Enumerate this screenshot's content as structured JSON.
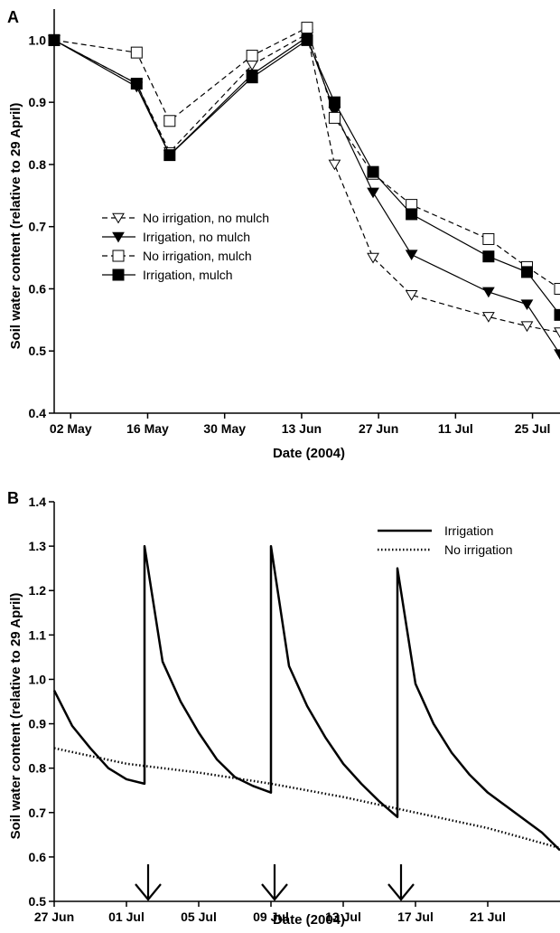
{
  "chart_data": [
    {
      "panel": "A",
      "type": "line",
      "title": "",
      "xlabel": "Date (2004)",
      "ylabel": "Soil water content (relative to 29 April)",
      "ylim": [
        0.4,
        1.05
      ],
      "yticks": [
        "0.4",
        "0.5",
        "0.6",
        "0.7",
        "0.8",
        "0.9",
        "1.0"
      ],
      "xticks": [
        "02 May",
        "16 May",
        "30 May",
        "13 Jun",
        "27 Jun",
        "11 Jul",
        "25 Jul"
      ],
      "xlim_dates": [
        "2004-04-29",
        "2004-07-30"
      ],
      "grid": false,
      "legend_position": "center-left",
      "series": [
        {
          "name": "No irrigation, no mulch",
          "marker": "triangle-down-open",
          "dash": true,
          "color": "#000000",
          "x": [
            "2004-04-29",
            "2004-05-14",
            "2004-05-20",
            "2004-06-04",
            "2004-06-14",
            "2004-06-19",
            "2004-06-26",
            "2004-07-03",
            "2004-07-17",
            "2004-07-24",
            "2004-07-30"
          ],
          "y": [
            1.0,
            0.93,
            0.82,
            0.96,
            1.01,
            0.8,
            0.65,
            0.59,
            0.555,
            0.54,
            0.53
          ]
        },
        {
          "name": "Irrigation, no mulch",
          "marker": "triangle-down-filled",
          "dash": false,
          "color": "#000000",
          "x": [
            "2004-04-29",
            "2004-05-14",
            "2004-05-20",
            "2004-06-04",
            "2004-06-14",
            "2004-06-19",
            "2004-06-26",
            "2004-07-03",
            "2004-07-17",
            "2004-07-24",
            "2004-07-30"
          ],
          "y": [
            1.0,
            0.925,
            0.815,
            0.945,
            1.005,
            0.885,
            0.755,
            0.655,
            0.595,
            0.575,
            0.495
          ]
        },
        {
          "name": "No irrigation, mulch",
          "marker": "square-open",
          "dash": true,
          "color": "#000000",
          "x": [
            "2004-04-29",
            "2004-05-14",
            "2004-05-20",
            "2004-06-04",
            "2004-06-14",
            "2004-06-19",
            "2004-06-26",
            "2004-07-03",
            "2004-07-17",
            "2004-07-24",
            "2004-07-30"
          ],
          "y": [
            1.0,
            0.98,
            0.87,
            0.975,
            1.02,
            0.875,
            0.785,
            0.735,
            0.68,
            0.635,
            0.6
          ]
        },
        {
          "name": "Irrigation, mulch",
          "marker": "square-filled",
          "dash": false,
          "color": "#000000",
          "x": [
            "2004-04-29",
            "2004-05-14",
            "2004-05-20",
            "2004-06-04",
            "2004-06-14",
            "2004-06-19",
            "2004-06-26",
            "2004-07-03",
            "2004-07-17",
            "2004-07-24",
            "2004-07-30"
          ],
          "y": [
            1.0,
            0.93,
            0.815,
            0.94,
            1.0,
            0.9,
            0.788,
            0.72,
            0.652,
            0.627,
            0.558
          ]
        }
      ]
    },
    {
      "panel": "B",
      "type": "line",
      "title": "",
      "xlabel": "Date (2004)",
      "ylabel": "Soil water content (relative to 29 April)",
      "ylim": [
        0.5,
        1.4
      ],
      "yticks": [
        "0.5",
        "0.6",
        "0.7",
        "0.8",
        "0.9",
        "1.0",
        "1.1",
        "1.2",
        "1.3",
        "1.4"
      ],
      "xticks": [
        "27 Jun",
        "01 Jul",
        "05 Jul",
        "09 Jul",
        "13 Jul",
        "17 Jul",
        "21 Jul"
      ],
      "xlim_dates": [
        "2004-06-27",
        "2004-07-25"
      ],
      "grid": false,
      "legend_position": "top-right",
      "irrigation_events": [
        "2004-07-02",
        "2004-07-09",
        "2004-07-16"
      ],
      "series": [
        {
          "name": "Irrigation",
          "style": "solid",
          "color": "#000000",
          "x": [
            "2004-06-27",
            "2004-06-28",
            "2004-06-29",
            "2004-06-30",
            "2004-07-01",
            "2004-07-02",
            "2004-07-02",
            "2004-07-03",
            "2004-07-04",
            "2004-07-05",
            "2004-07-06",
            "2004-07-07",
            "2004-07-08",
            "2004-07-09",
            "2004-07-09",
            "2004-07-10",
            "2004-07-11",
            "2004-07-12",
            "2004-07-13",
            "2004-07-14",
            "2004-07-15",
            "2004-07-16",
            "2004-07-16",
            "2004-07-17",
            "2004-07-18",
            "2004-07-19",
            "2004-07-20",
            "2004-07-21",
            "2004-07-22",
            "2004-07-23",
            "2004-07-24",
            "2004-07-25"
          ],
          "y": [
            0.975,
            0.895,
            0.845,
            0.8,
            0.775,
            0.765,
            1.3,
            1.04,
            0.95,
            0.88,
            0.82,
            0.78,
            0.76,
            0.745,
            1.3,
            1.03,
            0.94,
            0.87,
            0.81,
            0.765,
            0.725,
            0.69,
            1.25,
            0.99,
            0.9,
            0.835,
            0.785,
            0.745,
            0.715,
            0.685,
            0.655,
            0.615
          ]
        },
        {
          "name": "No irrigation",
          "style": "dotted",
          "color": "#000000",
          "x": [
            "2004-06-27",
            "2004-07-01",
            "2004-07-05",
            "2004-07-09",
            "2004-07-13",
            "2004-07-17",
            "2004-07-21",
            "2004-07-25"
          ],
          "y": [
            0.845,
            0.81,
            0.79,
            0.765,
            0.735,
            0.7,
            0.665,
            0.62
          ]
        }
      ]
    }
  ]
}
